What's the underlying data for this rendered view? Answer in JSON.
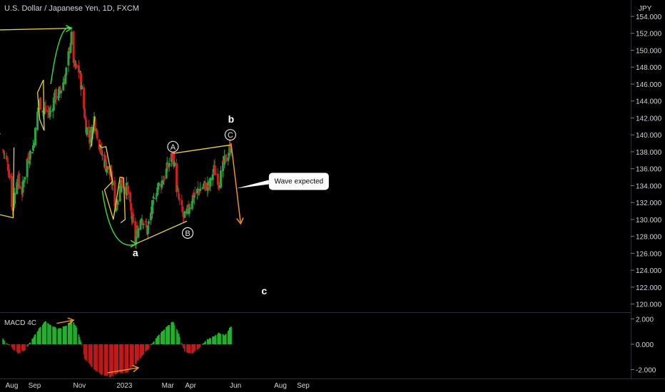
{
  "header": {
    "symbol_title": "U.S. Dollar / Japanese Yen, 1D, FXCM"
  },
  "colors": {
    "background": "#000000",
    "candle_up": "#26a641",
    "candle_down": "#d11f1f",
    "macd_up": "#22b22d",
    "macd_down": "#c21a1a",
    "yellow_lines": "#e8d23a",
    "green_arrows": "#3ddc3d",
    "orange_arrows": "#f0902a",
    "axis_text": "#d1d4dc"
  },
  "chart_data": [
    {
      "type": "candlestick",
      "title": "U.S. Dollar / Japanese Yen, 1D, FXCM",
      "y_unit_label": "JPY",
      "ylim": [
        119.5,
        155.5
      ],
      "y_ticks": [
        "154.000",
        "152.000",
        "150.000",
        "148.000",
        "146.000",
        "144.000",
        "142.000",
        "140.000",
        "138.000",
        "136.000",
        "134.000",
        "132.000",
        "130.000",
        "128.000",
        "126.000",
        "124.000",
        "122.000",
        "120.000"
      ],
      "x_ticks": [
        "Aug",
        "Sep",
        "Nov",
        "2023",
        "Mar",
        "Apr",
        "Jun",
        "Aug",
        "Sep"
      ],
      "close_path": [
        [
          "2022-07-20",
          138.2
        ],
        [
          "2022-07-28",
          136.0
        ],
        [
          "2022-08-02",
          131.0
        ],
        [
          "2022-08-08",
          135.0
        ],
        [
          "2022-08-15",
          133.3
        ],
        [
          "2022-08-22",
          137.0
        ],
        [
          "2022-08-31",
          138.9
        ],
        [
          "2022-09-07",
          144.0
        ],
        [
          "2022-09-13",
          143.0
        ],
        [
          "2022-09-22",
          142.5
        ],
        [
          "2022-09-28",
          144.5
        ],
        [
          "2022-10-05",
          145.0
        ],
        [
          "2022-10-13",
          147.0
        ],
        [
          "2022-10-21",
          151.5
        ],
        [
          "2022-10-25",
          148.0
        ],
        [
          "2022-11-01",
          147.5
        ],
        [
          "2022-11-10",
          141.0
        ],
        [
          "2022-11-15",
          139.5
        ],
        [
          "2022-11-21",
          142.0
        ],
        [
          "2022-11-30",
          138.0
        ],
        [
          "2022-12-06",
          136.5
        ],
        [
          "2022-12-14",
          135.0
        ],
        [
          "2022-12-20",
          131.5
        ],
        [
          "2022-12-28",
          134.5
        ],
        [
          "2023-01-05",
          133.5
        ],
        [
          "2023-01-16",
          127.5
        ],
        [
          "2023-01-24",
          130.5
        ],
        [
          "2023-02-01",
          128.6
        ],
        [
          "2023-02-08",
          131.5
        ],
        [
          "2023-02-15",
          133.8
        ],
        [
          "2023-02-22",
          134.6
        ],
        [
          "2023-03-01",
          136.2
        ],
        [
          "2023-03-08",
          137.8
        ],
        [
          "2023-03-14",
          133.0
        ],
        [
          "2023-03-23",
          130.0
        ],
        [
          "2023-03-28",
          131.0
        ],
        [
          "2023-04-03",
          132.6
        ],
        [
          "2023-04-12",
          133.5
        ],
        [
          "2023-04-20",
          134.0
        ],
        [
          "2023-04-27",
          133.9
        ],
        [
          "2023-05-02",
          136.0
        ],
        [
          "2023-05-10",
          134.5
        ],
        [
          "2023-05-16",
          136.5
        ],
        [
          "2023-05-25",
          138.5
        ],
        [
          "2023-05-26",
          139.0
        ]
      ],
      "projection": [
        [
          "2023-05-26",
          139.0
        ],
        [
          "2023-06-08",
          129.5
        ]
      ],
      "annotations": [
        {
          "label": "A",
          "date": "2023-03-08",
          "price": 138.6,
          "style": "circled"
        },
        {
          "label": "B",
          "date": "2023-03-28",
          "price": 128.4,
          "style": "circled"
        },
        {
          "label": "C",
          "date": "2023-05-25",
          "price": 140.0,
          "style": "circled"
        },
        {
          "label": "a",
          "date": "2023-01-16",
          "price": 126.0,
          "style": "plain"
        },
        {
          "label": "b",
          "date": "2023-05-26",
          "price": 141.8,
          "style": "plain"
        },
        {
          "label": "c",
          "date": "2023-07-10",
          "price": 121.5,
          "style": "plain"
        }
      ],
      "callout": {
        "text": "Wave expected",
        "date": "2023-06-25",
        "price": 134.5
      }
    },
    {
      "type": "histogram",
      "title": "MACD 4C",
      "ylim": [
        -2.3,
        2.3
      ],
      "y_ticks": [
        "2.000",
        "0.000",
        "-2.000"
      ],
      "x_ticks": [
        "Aug",
        "Sep",
        "Nov",
        "2023",
        "Mar",
        "Apr",
        "Jun",
        "Aug",
        "Sep"
      ],
      "path": [
        [
          "2022-07-20",
          0.4
        ],
        [
          "2022-08-01",
          -0.3
        ],
        [
          "2022-08-10",
          -0.7
        ],
        [
          "2022-08-20",
          -0.4
        ],
        [
          "2022-08-28",
          0.3
        ],
        [
          "2022-09-06",
          1.1
        ],
        [
          "2022-09-15",
          1.8
        ],
        [
          "2022-09-25",
          1.4
        ],
        [
          "2022-10-05",
          1.2
        ],
        [
          "2022-10-15",
          1.5
        ],
        [
          "2022-10-22",
          1.95
        ],
        [
          "2022-10-28",
          1.3
        ],
        [
          "2022-11-03",
          0.2
        ],
        [
          "2022-11-08",
          -1.1
        ],
        [
          "2022-11-20",
          -1.9
        ],
        [
          "2022-12-01",
          -2.4
        ],
        [
          "2022-12-12",
          -2.6
        ],
        [
          "2022-12-22",
          -2.3
        ],
        [
          "2023-01-05",
          -2.2
        ],
        [
          "2023-01-15",
          -1.6
        ],
        [
          "2023-01-25",
          -0.9
        ],
        [
          "2023-02-05",
          -0.2
        ],
        [
          "2023-02-15",
          0.6
        ],
        [
          "2023-02-25",
          1.2
        ],
        [
          "2023-03-08",
          1.8
        ],
        [
          "2023-03-16",
          0.8
        ],
        [
          "2023-03-24",
          -0.6
        ],
        [
          "2023-04-02",
          -0.8
        ],
        [
          "2023-04-12",
          -0.3
        ],
        [
          "2023-04-22",
          0.3
        ],
        [
          "2023-05-02",
          0.6
        ],
        [
          "2023-05-10",
          0.9
        ],
        [
          "2023-05-17",
          0.7
        ],
        [
          "2023-05-26",
          1.4
        ]
      ]
    }
  ]
}
